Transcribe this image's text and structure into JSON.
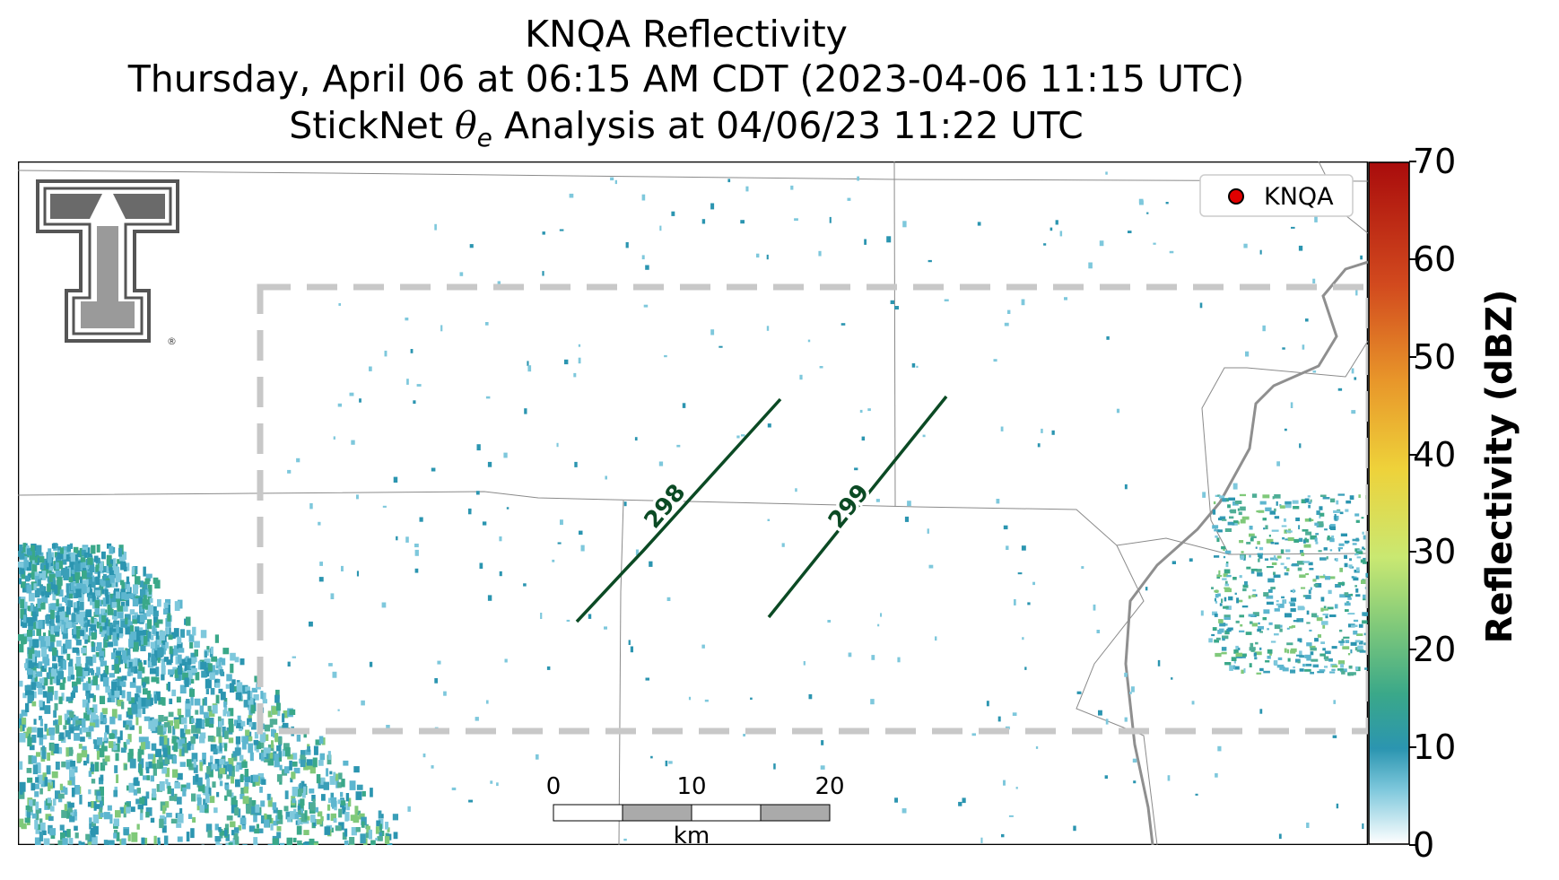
{
  "title": {
    "line1": "KNQA Reflectivity",
    "line2": "Thursday, April 06 at 06:15 AM CDT (2023-04-06 11:15 UTC)",
    "line3_prefix": "StickNet ",
    "line3_symbol": "θ",
    "line3_sub": "e",
    "line3_suffix": " Analysis at 04/06/23 11:22 UTC"
  },
  "legend": {
    "label": "KNQA",
    "marker_color": "#e00000"
  },
  "contours": [
    {
      "label": "298",
      "color": "#0b4a24"
    },
    {
      "label": "299",
      "color": "#0b4a24"
    }
  ],
  "scale_bar": {
    "ticks": [
      "0",
      "10",
      "20"
    ],
    "unit": "km"
  },
  "colorbar": {
    "label": "Reflectivity (dBZ)",
    "ticks": [
      "0",
      "10",
      "20",
      "30",
      "40",
      "50",
      "60",
      "70"
    ],
    "min": 0,
    "max": 70,
    "colors": [
      "#ffffff",
      "#7ec8dc",
      "#2b95b0",
      "#3aa889",
      "#80c97a",
      "#c9e872",
      "#eed23a",
      "#e8962a",
      "#d24a1e",
      "#a90c0c"
    ]
  },
  "analysis_box": {
    "style": "dashed",
    "color": "#c8c8c8"
  },
  "logo": {
    "description": "Texas Tech Double T logo",
    "mark": "®"
  }
}
